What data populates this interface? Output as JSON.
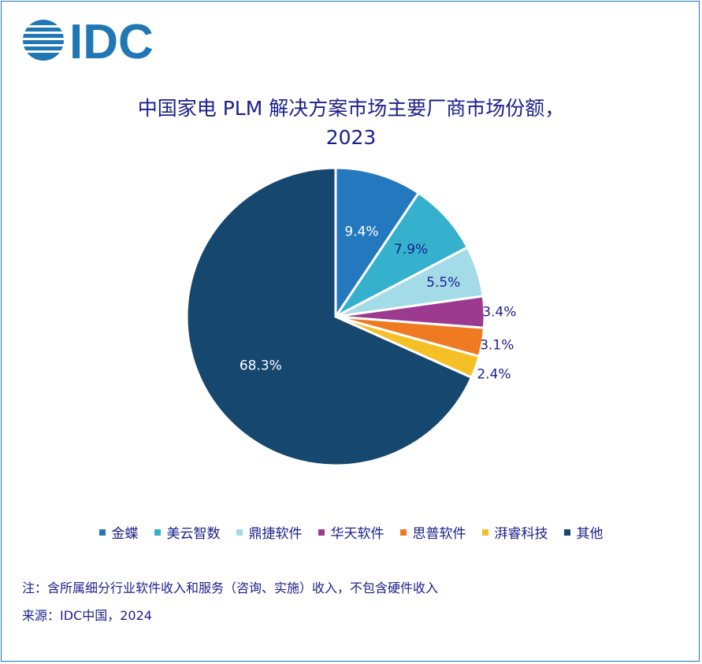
{
  "logo": {
    "text": "IDC",
    "color": "#1f77b4"
  },
  "title": {
    "line1": "中国家电 PLM 解决方案市场主要厂商市场份额，",
    "line2": "2023"
  },
  "chart_data": {
    "type": "pie",
    "title": "中国家电 PLM 解决方案市场主要厂商市场份额，2023",
    "slices": [
      {
        "name": "金蝶",
        "value": 9.4,
        "label": "9.4%",
        "color": "#2479be",
        "label_color": "#ffffff"
      },
      {
        "name": "美云智数",
        "value": 7.9,
        "label": "7.9%",
        "color": "#35b0cd",
        "label_color": "#1b1f8a"
      },
      {
        "name": "鼎捷软件",
        "value": 5.5,
        "label": "5.5%",
        "color": "#a4dbe8",
        "label_color": "#1b1f8a"
      },
      {
        "name": "华天软件",
        "value": 3.4,
        "label": "3.4%",
        "color": "#9b3a8f",
        "label_color": "#1b1f8a"
      },
      {
        "name": "思普软件",
        "value": 3.1,
        "label": "3.1%",
        "color": "#f07a21",
        "label_color": "#1b1f8a"
      },
      {
        "name": "湃睿科技",
        "value": 2.4,
        "label": "2.4%",
        "color": "#f5bf26",
        "label_color": "#1b1f8a"
      },
      {
        "name": "其他",
        "value": 68.3,
        "label": "68.3%",
        "color": "#16476f",
        "label_color": "#ffffff"
      }
    ],
    "legend_position": "bottom"
  },
  "footnotes": {
    "note": "注：含所属细分行业软件收入和服务（咨询、实施）收入，不包含硬件收入",
    "source": "来源：IDC中国，2024"
  }
}
